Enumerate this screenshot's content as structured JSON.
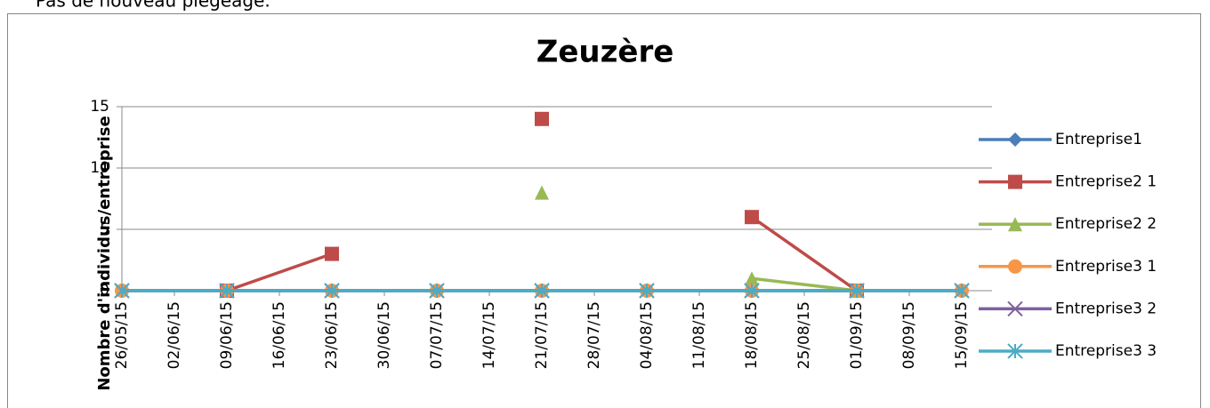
{
  "header_text": "Pas de nouveau piégeage.",
  "chart_data": {
    "type": "line",
    "title": "Zeuzère",
    "y_label": "Nombre d'individus/entreprise",
    "x": [
      "26/05/15",
      "09/06/15",
      "23/06/15",
      "07/07/15",
      "21/07/15",
      "04/08/15",
      "18/08/15",
      "01/09/15",
      "15/09/15"
    ],
    "xticks": [
      "26/05/15",
      "02/06/15",
      "09/06/15",
      "16/06/15",
      "23/06/15",
      "30/06/15",
      "07/07/15",
      "14/07/15",
      "21/07/15",
      "28/07/15",
      "04/08/15",
      "11/08/15",
      "18/08/15",
      "25/08/15",
      "01/09/15",
      "08/09/15",
      "15/09/15"
    ],
    "xlim": [
      "26/05/15",
      "15/09/15"
    ],
    "ylim": [
      0,
      15
    ],
    "yticks": [
      0,
      5,
      10,
      15
    ],
    "grid": true,
    "legend": "right",
    "series": [
      {
        "name": "Entreprise1",
        "color": "#4a7ebb",
        "marker": "diamond",
        "values": [
          0,
          0,
          0,
          0,
          0,
          0,
          0,
          0,
          0
        ]
      },
      {
        "name": "Entreprise2 1",
        "color": "#be4b48",
        "marker": "square",
        "values": [
          null,
          0,
          3,
          null,
          14,
          null,
          6,
          0,
          null
        ]
      },
      {
        "name": "Entreprise2 2",
        "color": "#98b954",
        "marker": "triangle",
        "values": [
          null,
          null,
          null,
          null,
          8,
          null,
          1,
          0,
          null
        ]
      },
      {
        "name": "Entreprise3 1",
        "color": "#f79646",
        "marker": "circle",
        "values": [
          0,
          0,
          0,
          0,
          0,
          0,
          0,
          0,
          0
        ]
      },
      {
        "name": "Entreprise3 2",
        "color": "#7d60a0",
        "marker": "x",
        "values": [
          0,
          0,
          0,
          0,
          0,
          0,
          0,
          0,
          0
        ]
      },
      {
        "name": "Entreprise3 3",
        "color": "#4bacc6",
        "marker": "star",
        "values": [
          0,
          0,
          0,
          0,
          0,
          0,
          0,
          0,
          0
        ]
      }
    ]
  }
}
